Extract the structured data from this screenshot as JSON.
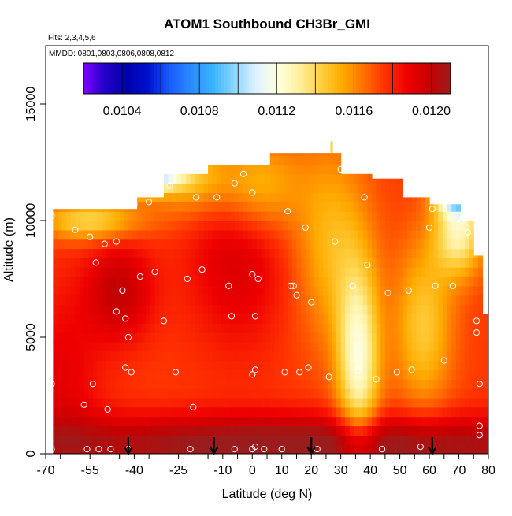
{
  "chart_data": {
    "type": "heatmap",
    "title": "ATOM1 Southbound CH3Br_GMI",
    "subtitle_flights": "Flts: 2,3,4,5,6",
    "subtitle_dates": "MMDD: 0801,0803,0806,0808,0812",
    "xlabel": "Latitude (deg N)",
    "ylabel": "Altitude (m)",
    "xlim": [
      -70,
      80
    ],
    "ylim": [
      0,
      17500
    ],
    "x_ticks": [
      -70,
      -55,
      -40,
      -25,
      -10,
      0,
      10,
      20,
      30,
      40,
      50,
      60,
      70,
      80
    ],
    "x_tick_labels": [
      "-70",
      "-55",
      "-40",
      "-25",
      "-10",
      "0",
      "10",
      "20",
      "30",
      "40",
      "50",
      "60",
      "70",
      "80"
    ],
    "y_ticks": [
      0,
      5000,
      10000,
      15000
    ],
    "y_tick_labels": [
      "0",
      "5000",
      "10000",
      "15000"
    ],
    "colorbar": {
      "min": 0.0102,
      "max": 0.0121,
      "ticks": [
        0.0104,
        0.0108,
        0.0112,
        0.0116,
        0.012
      ],
      "tick_labels": [
        "0.0104",
        "0.0108",
        "0.0112",
        "0.0116",
        "0.0120"
      ],
      "colors": [
        "#7f00ff",
        "#2200c8",
        "#0000aa",
        "#0011d0",
        "#1a5cff",
        "#2a8cff",
        "#38b4ff",
        "#8ed6ff",
        "#e0f2ff",
        "#ffffe0",
        "#fff0a0",
        "#ffd040",
        "#ffaa00",
        "#ff7000",
        "#ff3000",
        "#ee0000",
        "#c80000",
        "#9a1c1c"
      ]
    },
    "grid": false,
    "arrow_latitudes": [
      -42,
      -13,
      20,
      61
    ],
    "observation_points": [
      [
        -68,
        10200
      ],
      [
        -68,
        3000
      ],
      [
        -68,
        200
      ],
      [
        -60,
        9600
      ],
      [
        -55,
        9300
      ],
      [
        -54,
        3000
      ],
      [
        -57,
        2100
      ],
      [
        -56,
        200
      ],
      [
        -50,
        9000
      ],
      [
        -52,
        200
      ],
      [
        -48,
        200
      ],
      [
        -46,
        9100
      ],
      [
        -49,
        1900
      ],
      [
        -53,
        8200
      ],
      [
        -46,
        6100
      ],
      [
        -44,
        7000
      ],
      [
        -43,
        5800
      ],
      [
        -42,
        5000
      ],
      [
        -43,
        3700
      ],
      [
        -41,
        3500
      ],
      [
        -44,
        11600
      ],
      [
        -40,
        10700
      ],
      [
        -42,
        200
      ],
      [
        -38,
        7600
      ],
      [
        -35,
        10800
      ],
      [
        -33,
        7800
      ],
      [
        -30,
        5700
      ],
      [
        -28,
        11500
      ],
      [
        -26,
        3500
      ],
      [
        -22,
        7500
      ],
      [
        -20,
        2000
      ],
      [
        -19,
        11000
      ],
      [
        -21,
        200
      ],
      [
        -17,
        7900
      ],
      [
        -12,
        11000
      ],
      [
        -8,
        7200
      ],
      [
        -7,
        5900
      ],
      [
        -6,
        200
      ],
      [
        -3,
        12000
      ],
      [
        0,
        11200
      ],
      [
        0,
        7700
      ],
      [
        2,
        7500
      ],
      [
        1,
        5900
      ],
      [
        1,
        3600
      ],
      [
        0,
        3400
      ],
      [
        0,
        200
      ],
      [
        1,
        300
      ],
      [
        4,
        200
      ],
      [
        10,
        200
      ],
      [
        12,
        10400
      ],
      [
        13,
        7200
      ],
      [
        11,
        3500
      ],
      [
        14,
        7200
      ],
      [
        15,
        6800
      ],
      [
        16,
        3500
      ],
      [
        18,
        9700
      ],
      [
        20,
        6500
      ],
      [
        19,
        3700
      ],
      [
        22,
        200
      ],
      [
        26,
        3300
      ],
      [
        28,
        9100
      ],
      [
        34,
        7200
      ],
      [
        36,
        3600
      ],
      [
        38,
        11000
      ],
      [
        39,
        8100
      ],
      [
        42,
        3200
      ],
      [
        44,
        200
      ],
      [
        46,
        6900
      ],
      [
        49,
        3500
      ],
      [
        53,
        7000
      ],
      [
        54,
        3600
      ],
      [
        57,
        300
      ],
      [
        60,
        9700
      ],
      [
        62,
        7200
      ],
      [
        65,
        4000
      ],
      [
        68,
        7200
      ],
      [
        71,
        10000
      ],
      [
        73,
        9500
      ],
      [
        76,
        5200
      ],
      [
        77,
        3000
      ],
      [
        77,
        1200
      ],
      [
        77,
        800
      ],
      [
        76,
        5700
      ],
      [
        61,
        10500
      ],
      [
        30,
        12200
      ],
      [
        -6,
        11600
      ]
    ]
  }
}
